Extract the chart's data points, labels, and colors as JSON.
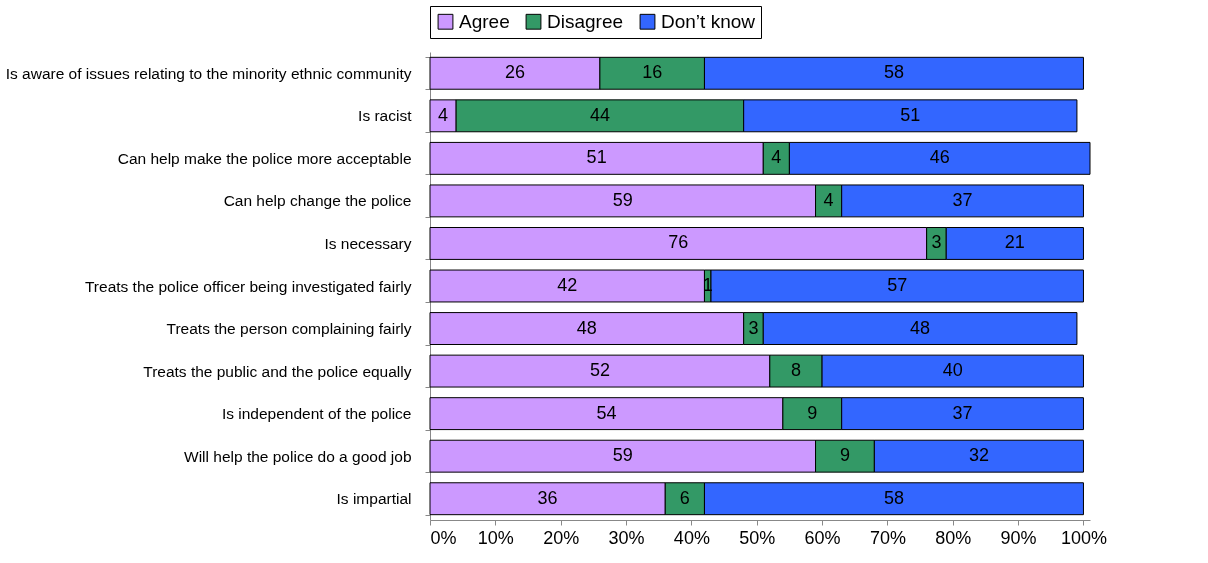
{
  "chart_data": {
    "type": "bar",
    "orientation": "horizontal",
    "stacked": true,
    "data_labels": true,
    "legend": "top",
    "grid": false,
    "categories": [
      "Is aware of issues relating to the minority ethnic community",
      "Is racist",
      "Can help make the police more acceptable",
      "Can help change the police",
      "Is necessary",
      "Treats the police officer being investigated fairly",
      "Treats the person complaining fairly",
      "Treats the public and the police equally",
      "Is independent of the police",
      "Will help the police do a good job",
      "Is impartial"
    ],
    "series": [
      {
        "name": "Agree",
        "color": "#cc99ff",
        "values": [
          26,
          4,
          51,
          59,
          76,
          42,
          48,
          52,
          54,
          59,
          36
        ]
      },
      {
        "name": "Disagree",
        "color": "#339966",
        "values": [
          16,
          44,
          4,
          4,
          3,
          1,
          3,
          8,
          9,
          9,
          6
        ]
      },
      {
        "name": "Don’t know",
        "color": "#3366ff",
        "values": [
          58,
          51,
          46,
          37,
          21,
          57,
          48,
          40,
          37,
          32,
          58
        ]
      }
    ],
    "xlim": [
      0,
      101
    ],
    "xticks": [
      {
        "value": 0,
        "label": "0%"
      },
      {
        "value": 10,
        "label": "10%"
      },
      {
        "value": 20,
        "label": "20%"
      },
      {
        "value": 30,
        "label": "30%"
      },
      {
        "value": 40,
        "label": "40%"
      },
      {
        "value": 50,
        "label": "50%"
      },
      {
        "value": 60,
        "label": "60%"
      },
      {
        "value": 70,
        "label": "70%"
      },
      {
        "value": 80,
        "label": "80%"
      },
      {
        "value": 90,
        "label": "90%"
      },
      {
        "value": 100,
        "label": "100%"
      }
    ]
  }
}
